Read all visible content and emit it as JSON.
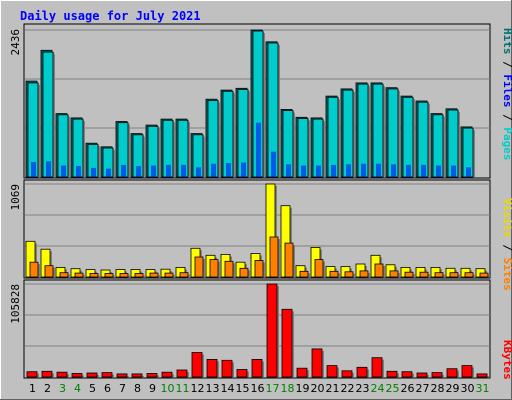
{
  "chart_data": [
    {
      "type": "bar",
      "title": "Daily usage for July 2021",
      "categories": [
        "1",
        "2",
        "3",
        "4",
        "5",
        "6",
        "7",
        "8",
        "9",
        "10",
        "11",
        "12",
        "13",
        "14",
        "15",
        "16",
        "17",
        "18",
        "19",
        "20",
        "21",
        "22",
        "23",
        "24",
        "25",
        "26",
        "27",
        "28",
        "29",
        "30",
        "31"
      ],
      "weekend_days": [
        "3",
        "4",
        "10",
        "11",
        "17",
        "18",
        "24",
        "25",
        "31"
      ],
      "ymax_label": "2436",
      "ylim": [
        0,
        2436
      ],
      "legend": [
        "Pages",
        "Files",
        "Hits"
      ],
      "series": [
        {
          "name": "Hits",
          "values": [
            1590,
            2100,
            1050,
            980,
            560,
            500,
            920,
            720,
            860,
            960,
            960,
            720,
            1290,
            1440,
            1470,
            2436,
            2240,
            1120,
            990,
            980,
            1340,
            1460,
            1560,
            1560,
            1480,
            1340,
            1260,
            1050,
            1130,
            830,
            0
          ]
        },
        {
          "name": "Files",
          "values": [
            1560,
            2070,
            1030,
            960,
            540,
            480,
            900,
            700,
            840,
            940,
            940,
            700,
            1270,
            1420,
            1450,
            2420,
            2220,
            1100,
            970,
            960,
            1320,
            1440,
            1540,
            1540,
            1460,
            1320,
            1240,
            1030,
            1110,
            810,
            0
          ]
        },
        {
          "name": "Pages",
          "values": [
            250,
            260,
            190,
            180,
            150,
            140,
            200,
            180,
            190,
            200,
            200,
            160,
            220,
            230,
            240,
            900,
            420,
            210,
            190,
            190,
            200,
            210,
            220,
            220,
            210,
            200,
            200,
            190,
            190,
            160,
            0
          ]
        }
      ]
    },
    {
      "type": "bar",
      "categories": [
        "1",
        "2",
        "3",
        "4",
        "5",
        "6",
        "7",
        "8",
        "9",
        "10",
        "11",
        "12",
        "13",
        "14",
        "15",
        "16",
        "17",
        "18",
        "19",
        "20",
        "21",
        "22",
        "23",
        "24",
        "25",
        "26",
        "27",
        "28",
        "29",
        "30",
        "31"
      ],
      "ymax_label": "1069",
      "ylim": [
        0,
        1069
      ],
      "legend": [
        "Sites",
        "Visits"
      ],
      "series": [
        {
          "name": "Visits",
          "values": [
            410,
            320,
            110,
            95,
            85,
            80,
            85,
            85,
            85,
            90,
            110,
            330,
            250,
            260,
            170,
            270,
            1069,
            820,
            130,
            340,
            120,
            120,
            150,
            250,
            140,
            110,
            110,
            110,
            100,
            100,
            95
          ]
        },
        {
          "name": "Sites",
          "values": [
            170,
            130,
            50,
            45,
            40,
            40,
            40,
            40,
            45,
            45,
            50,
            230,
            200,
            180,
            100,
            190,
            460,
            390,
            65,
            200,
            65,
            60,
            70,
            150,
            70,
            55,
            55,
            50,
            50,
            50,
            45
          ]
        }
      ]
    },
    {
      "type": "bar",
      "categories": [
        "1",
        "2",
        "3",
        "4",
        "5",
        "6",
        "7",
        "8",
        "9",
        "10",
        "11",
        "12",
        "13",
        "14",
        "15",
        "16",
        "17",
        "18",
        "19",
        "20",
        "21",
        "22",
        "23",
        "24",
        "25",
        "26",
        "27",
        "28",
        "29",
        "30",
        "31"
      ],
      "ymax_label": "105828",
      "ylim": [
        0,
        105828
      ],
      "legend": [
        "KBytes"
      ],
      "series": [
        {
          "name": "KBytes",
          "values": [
            6000,
            6500,
            5500,
            4000,
            4500,
            5000,
            3500,
            3500,
            4000,
            5500,
            8000,
            28000,
            20000,
            19000,
            8500,
            20000,
            105828,
            77000,
            10000,
            32000,
            13000,
            7000,
            11000,
            22000,
            6500,
            6000,
            4500,
            5000,
            9500,
            13000,
            3500
          ]
        }
      ]
    }
  ],
  "colors": {
    "background": "#c0c0c0",
    "page_background": "#ffffff",
    "title": "#0000ff",
    "hits": "#00cccc",
    "hits_dark": "#007070",
    "files": "#0000ff",
    "pages": "#00aaff",
    "visits": "#ffff00",
    "sites": "#ff8000",
    "kbytes": "#ff0000",
    "weekday_label": "#000000",
    "weekend_label": "#008000",
    "grid": "#808080"
  }
}
